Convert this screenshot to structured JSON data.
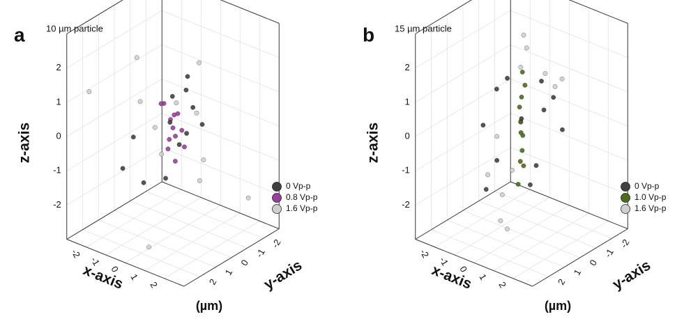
{
  "chart_data": [
    {
      "type": "scatter3d",
      "panel_label": "a",
      "title": "10 µm particle",
      "xlabel": "x-axis",
      "ylabel": "y-axis",
      "zlabel": "z-axis",
      "unit": "(µm)",
      "xlim": [
        -3,
        3
      ],
      "ylim": [
        -3,
        3
      ],
      "zlim": [
        -3,
        3
      ],
      "xticks": [
        -2,
        -1,
        0,
        1,
        2
      ],
      "yticks": [
        -2,
        -1,
        0,
        1,
        2
      ],
      "zticks": [
        -2,
        -1,
        0,
        1,
        2
      ],
      "grid": true,
      "series": [
        {
          "name": "0 Vp-p",
          "color": "#404040",
          "x": [
            -0.6,
            -0.3,
            0,
            0.3,
            0.6,
            -0.4,
            0.2,
            0.5,
            -0.2,
            0.1,
            0.7,
            -0.7
          ],
          "y": [
            -2.0,
            -1.2,
            -0.4,
            0.4,
            1.2,
            2.0,
            -1.6,
            0.8,
            1.6,
            -0.8,
            0,
            2.3
          ],
          "z": [
            0,
            0.8,
            -0.5,
            1.2,
            -0.9,
            0.3,
            -0.2,
            0.6,
            -1.1,
            1.4,
            0.1,
            -0.6
          ]
        },
        {
          "name": "0.8 Vp-p",
          "color": "#9a3e9e",
          "x": [
            -0.4,
            -0.2,
            0,
            0.2,
            0.4,
            -0.3,
            0.1,
            0.3,
            -0.1,
            0.2,
            -0.2,
            0.05
          ],
          "y": [
            -0.8,
            -0.4,
            0,
            0.4,
            0.8,
            0.2,
            -0.6,
            0.6,
            -0.2,
            0.1,
            0.5,
            -0.5
          ],
          "z": [
            0.2,
            -0.3,
            0.1,
            0.5,
            -0.2,
            0.8,
            -0.6,
            0,
            0.4,
            -0.8,
            0.9,
            -0.1
          ]
        },
        {
          "name": "1.6 Vp-p",
          "color": "#cfcfcf",
          "x": [
            -2.5,
            -1.8,
            -1.2,
            -0.5,
            0.3,
            1.0,
            1.8,
            2.4,
            -2.0,
            0.8,
            1.5,
            -0.9
          ],
          "y": [
            2.2,
            -1.5,
            0.8,
            -2.3,
            1.5,
            -0.7,
            2.0,
            -1.8,
            -0.4,
            2.5,
            0.2,
            -2.6
          ],
          "z": [
            1.2,
            -1.5,
            2.1,
            -2.2,
            0.6,
            -0.8,
            1.8,
            -1.9,
            0.3,
            -2.5,
            2.4,
            -0.4
          ]
        }
      ]
    },
    {
      "type": "scatter3d",
      "panel_label": "b",
      "title": "15 µm particle",
      "xlabel": "x-axis",
      "ylabel": "y-axis",
      "zlabel": "z-axis",
      "unit": "(µm)",
      "xlim": [
        -3,
        3
      ],
      "ylim": [
        -3,
        3
      ],
      "zlim": [
        -3,
        3
      ],
      "xticks": [
        -2,
        -1,
        0,
        1,
        2
      ],
      "yticks": [
        -2,
        -1,
        0,
        1,
        2
      ],
      "zticks": [
        -2,
        -1,
        0,
        1,
        2
      ],
      "grid": true,
      "series": [
        {
          "name": "0 Vp-p",
          "color": "#404040",
          "x": [
            -0.4,
            0.3,
            -0.2,
            0.1,
            0.4,
            -0.3,
            0.2,
            -0.1,
            0.3,
            -0.4,
            0,
            0.2
          ],
          "y": [
            -2.5,
            -2.2,
            -1.5,
            -0.8,
            0.5,
            1.2,
            1.8,
            2.3,
            2.6,
            -1.9,
            0.9,
            -0.3
          ],
          "z": [
            0.2,
            -0.5,
            1.0,
            -1.2,
            0.6,
            1.5,
            -0.3,
            0.8,
            -0.9,
            0,
            1.8,
            -1.6
          ]
        },
        {
          "name": "1.0 Vp-p",
          "color": "#4d6b1c",
          "x": [
            -0.2,
            0,
            0.2,
            -0.1,
            0.1,
            0.15,
            -0.15,
            0.05,
            -0.05,
            0.1,
            -0.1,
            0
          ],
          "y": [
            -0.3,
            0,
            0.3,
            -0.2,
            0.2,
            0.4,
            -0.4,
            0.1,
            -0.1,
            0.25,
            -0.25,
            0.05
          ],
          "z": [
            1.6,
            1.0,
            0.4,
            -0.2,
            -0.8,
            -1.4,
            1.2,
            0.0,
            -0.6,
            0.8,
            -1.1,
            0.3
          ]
        },
        {
          "name": "1.6 Vp-p",
          "color": "#cfcfcf",
          "x": [
            -0.3,
            0.2,
            -0.1,
            0.4,
            -0.5,
            0.1,
            0.3,
            -0.2,
            0,
            0.5,
            -0.4,
            0.2
          ],
          "y": [
            -0.5,
            0.3,
            1.2,
            -1.0,
            0.6,
            -0.2,
            2.5,
            -2.8,
            0.9,
            -1.5,
            0.1,
            1.8
          ],
          "z": [
            2.6,
            2.0,
            -2.3,
            1.5,
            -1.8,
            2.4,
            -0.5,
            0.7,
            -2.6,
            1.0,
            -1.2,
            0.4
          ]
        }
      ]
    }
  ]
}
